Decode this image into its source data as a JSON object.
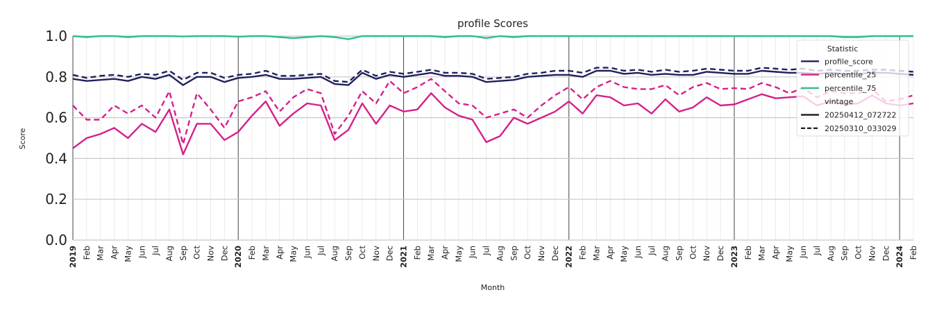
{
  "chart_data": {
    "type": "line",
    "title": "profile Scores",
    "xlabel": "Month",
    "ylabel": "Score",
    "ylim": [
      0.0,
      1.0
    ],
    "yticks": [
      "0.0",
      "0.2",
      "0.4",
      "0.6",
      "0.8",
      "1.0"
    ],
    "grid": true,
    "legend_position": "top-right",
    "x": [
      "2019",
      "Feb",
      "Mar",
      "Apr",
      "May",
      "Jun",
      "Jul",
      "Aug",
      "Sep",
      "Oct",
      "Nov",
      "Dec",
      "2020",
      "Feb",
      "Mar",
      "Apr",
      "May",
      "Jun",
      "Jul",
      "Aug",
      "Sep",
      "Oct",
      "Nov",
      "Dec",
      "2021",
      "Feb",
      "Mar",
      "Apr",
      "May",
      "Jun",
      "Jul",
      "Aug",
      "Sep",
      "Oct",
      "Nov",
      "Dec",
      "2022",
      "Feb",
      "Mar",
      "Apr",
      "May",
      "Jun",
      "Jul",
      "Aug",
      "Sep",
      "Oct",
      "Nov",
      "Dec",
      "2023",
      "Feb",
      "Mar",
      "Apr",
      "May",
      "Jun",
      "Jul",
      "Aug",
      "Sep",
      "Oct",
      "Nov",
      "Dec",
      "2024",
      "Feb"
    ],
    "year_ticks": [
      "2019",
      "2020",
      "2021",
      "2022",
      "2023",
      "2024"
    ],
    "legend": {
      "title_statistic": "Statistic",
      "title_vintage": "vintage",
      "statistics": [
        {
          "name": "profile_score",
          "color": "#1f1f5c"
        },
        {
          "name": "percentile_25",
          "color": "#d4208a"
        },
        {
          "name": "percentile_75",
          "color": "#2cbf8a"
        }
      ],
      "vintages": [
        {
          "name": "20250412_072722",
          "style": "solid"
        },
        {
          "name": "20250310_033029",
          "style": "dashed"
        }
      ]
    },
    "series": [
      {
        "name": "profile_score",
        "vintage": "20250412_072722",
        "color": "#1f1f5c",
        "style": "solid",
        "values": [
          0.79,
          0.78,
          0.785,
          0.79,
          0.78,
          0.8,
          0.79,
          0.81,
          0.76,
          0.8,
          0.8,
          0.775,
          0.795,
          0.8,
          0.81,
          0.79,
          0.79,
          0.795,
          0.8,
          0.765,
          0.76,
          0.82,
          0.79,
          0.81,
          0.8,
          0.81,
          0.82,
          0.805,
          0.805,
          0.8,
          0.775,
          0.78,
          0.785,
          0.8,
          0.805,
          0.81,
          0.81,
          0.8,
          0.83,
          0.83,
          0.815,
          0.82,
          0.81,
          0.815,
          0.81,
          0.81,
          0.825,
          0.82,
          0.815,
          0.815,
          0.83,
          0.825,
          0.82,
          0.82,
          0.815,
          0.82,
          0.815,
          0.815,
          0.82,
          0.82,
          0.815,
          0.81
        ]
      },
      {
        "name": "profile_score",
        "vintage": "20250310_033029",
        "color": "#1f1f5c",
        "style": "dashed",
        "values": [
          0.81,
          0.795,
          0.805,
          0.81,
          0.8,
          0.815,
          0.81,
          0.83,
          0.785,
          0.82,
          0.82,
          0.795,
          0.81,
          0.815,
          0.83,
          0.805,
          0.805,
          0.81,
          0.815,
          0.78,
          0.775,
          0.835,
          0.805,
          0.825,
          0.815,
          0.825,
          0.835,
          0.82,
          0.82,
          0.815,
          0.79,
          0.795,
          0.8,
          0.815,
          0.82,
          0.83,
          0.83,
          0.82,
          0.845,
          0.845,
          0.83,
          0.835,
          0.825,
          0.835,
          0.825,
          0.83,
          0.84,
          0.835,
          0.83,
          0.83,
          0.845,
          0.84,
          0.835,
          0.84,
          0.83,
          0.835,
          0.83,
          0.83,
          0.835,
          0.835,
          0.83,
          0.825
        ]
      },
      {
        "name": "percentile_25",
        "vintage": "20250412_072722",
        "color": "#d4208a",
        "style": "solid",
        "values": [
          0.45,
          0.5,
          0.52,
          0.55,
          0.5,
          0.57,
          0.53,
          0.64,
          0.42,
          0.57,
          0.57,
          0.49,
          0.53,
          0.61,
          0.68,
          0.56,
          0.62,
          0.67,
          0.66,
          0.49,
          0.54,
          0.67,
          0.57,
          0.66,
          0.63,
          0.64,
          0.72,
          0.65,
          0.61,
          0.59,
          0.48,
          0.51,
          0.6,
          0.57,
          0.6,
          0.63,
          0.68,
          0.62,
          0.71,
          0.7,
          0.66,
          0.67,
          0.62,
          0.69,
          0.63,
          0.65,
          0.7,
          0.66,
          0.665,
          0.69,
          0.715,
          0.695,
          0.7,
          0.705,
          0.66,
          0.68,
          0.665,
          0.67,
          0.71,
          0.67,
          0.66,
          0.67
        ]
      },
      {
        "name": "percentile_25",
        "vintage": "20250310_033029",
        "color": "#d4208a",
        "style": "dashed",
        "values": [
          0.66,
          0.59,
          0.59,
          0.66,
          0.62,
          0.66,
          0.6,
          0.73,
          0.47,
          0.72,
          0.64,
          0.55,
          0.68,
          0.7,
          0.73,
          0.63,
          0.7,
          0.74,
          0.72,
          0.52,
          0.61,
          0.73,
          0.67,
          0.78,
          0.72,
          0.75,
          0.79,
          0.73,
          0.67,
          0.66,
          0.6,
          0.62,
          0.64,
          0.6,
          0.66,
          0.71,
          0.75,
          0.69,
          0.75,
          0.78,
          0.75,
          0.74,
          0.74,
          0.76,
          0.71,
          0.75,
          0.77,
          0.74,
          0.745,
          0.74,
          0.77,
          0.75,
          0.72,
          0.745,
          0.7,
          0.73,
          0.72,
          0.72,
          0.74,
          0.68,
          0.69,
          0.71
        ]
      },
      {
        "name": "percentile_75",
        "vintage": "20250412_072722",
        "color": "#2cbf8a",
        "style": "solid",
        "values": [
          1.0,
          0.995,
          1.0,
          1.0,
          0.995,
          1.0,
          1.0,
          1.0,
          0.998,
          1.0,
          1.0,
          1.0,
          0.997,
          1.0,
          1.0,
          0.995,
          0.99,
          0.995,
          1.0,
          0.995,
          0.985,
          1.0,
          1.0,
          1.0,
          1.0,
          1.0,
          1.0,
          0.995,
          1.0,
          1.0,
          0.99,
          1.0,
          0.995,
          1.0,
          1.0,
          1.0,
          1.0,
          1.0,
          1.0,
          1.0,
          1.0,
          1.0,
          1.0,
          1.0,
          1.0,
          1.0,
          1.0,
          1.0,
          1.0,
          1.0,
          1.0,
          1.0,
          1.0,
          1.0,
          1.0,
          1.0,
          0.995,
          0.995,
          1.0,
          1.0,
          1.0,
          1.0
        ]
      }
    ]
  }
}
